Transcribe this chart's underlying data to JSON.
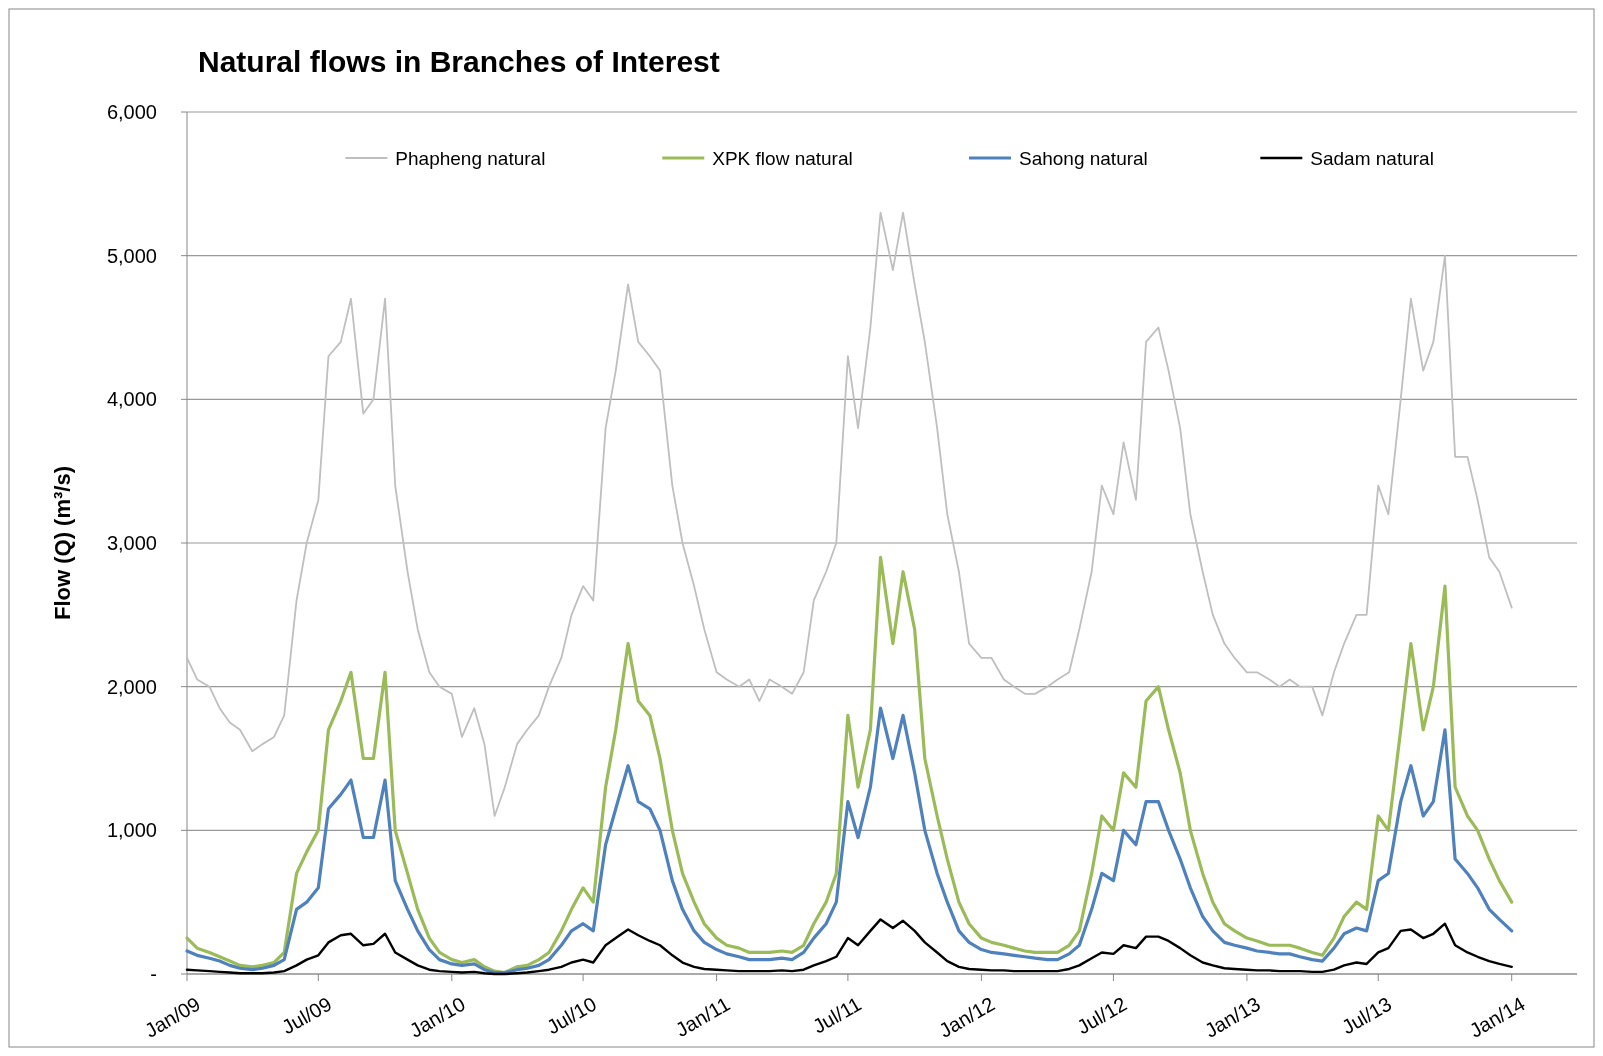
{
  "chart_data": {
    "type": "line",
    "title": "Natural flows in Branches of Interest",
    "ylabel": "Flow (Q) (m³/s)",
    "x": [
      "2009-01-01",
      "2009-01-15",
      "2009-02-01",
      "2009-02-15",
      "2009-03-01",
      "2009-03-15",
      "2009-04-01",
      "2009-04-15",
      "2009-05-01",
      "2009-05-15",
      "2009-06-01",
      "2009-06-15",
      "2009-07-01",
      "2009-07-15",
      "2009-08-01",
      "2009-08-15",
      "2009-09-01",
      "2009-09-15",
      "2009-10-01",
      "2009-10-15",
      "2009-11-01",
      "2009-11-15",
      "2009-12-01",
      "2009-12-15",
      "2010-01-01",
      "2010-01-15",
      "2010-02-01",
      "2010-02-15",
      "2010-03-01",
      "2010-03-15",
      "2010-04-01",
      "2010-04-15",
      "2010-05-01",
      "2010-05-15",
      "2010-06-01",
      "2010-06-15",
      "2010-07-01",
      "2010-07-15",
      "2010-08-01",
      "2010-08-15",
      "2010-09-01",
      "2010-09-15",
      "2010-10-01",
      "2010-10-15",
      "2010-11-01",
      "2010-11-15",
      "2010-12-01",
      "2010-12-15",
      "2011-01-01",
      "2011-01-15",
      "2011-02-01",
      "2011-02-15",
      "2011-03-01",
      "2011-03-15",
      "2011-04-01",
      "2011-04-15",
      "2011-05-01",
      "2011-05-15",
      "2011-06-01",
      "2011-06-15",
      "2011-07-01",
      "2011-07-15",
      "2011-08-01",
      "2011-08-15",
      "2011-09-01",
      "2011-09-15",
      "2011-10-01",
      "2011-10-15",
      "2011-11-01",
      "2011-11-15",
      "2011-12-01",
      "2011-12-15",
      "2012-01-01",
      "2012-01-15",
      "2012-02-01",
      "2012-02-15",
      "2012-03-01",
      "2012-03-15",
      "2012-04-01",
      "2012-04-15",
      "2012-05-01",
      "2012-05-15",
      "2012-06-01",
      "2012-06-15",
      "2012-07-01",
      "2012-07-15",
      "2012-08-01",
      "2012-08-15",
      "2012-09-01",
      "2012-09-15",
      "2012-10-01",
      "2012-10-15",
      "2012-11-01",
      "2012-11-15",
      "2012-12-01",
      "2012-12-15",
      "2013-01-01",
      "2013-01-15",
      "2013-02-01",
      "2013-02-15",
      "2013-03-01",
      "2013-03-15",
      "2013-04-01",
      "2013-04-15",
      "2013-05-01",
      "2013-05-15",
      "2013-06-01",
      "2013-06-15",
      "2013-07-01",
      "2013-07-15",
      "2013-08-01",
      "2013-08-15",
      "2013-09-01",
      "2013-09-15",
      "2013-10-01",
      "2013-10-15",
      "2013-11-01",
      "2013-11-15",
      "2013-12-01",
      "2013-12-15",
      "2014-01-01"
    ],
    "series": [
      {
        "name": "Phapheng natural",
        "color": "#bfbfbf",
        "values": [
          2200,
          2050,
          2000,
          1850,
          1750,
          1700,
          1550,
          1600,
          1650,
          1800,
          2600,
          3000,
          3300,
          4300,
          4400,
          4700,
          3900,
          4000,
          4700,
          3400,
          2800,
          2400,
          2100,
          2000,
          1950,
          1650,
          1850,
          1600,
          1100,
          1300,
          1600,
          1700,
          1800,
          2000,
          2200,
          2500,
          2700,
          2600,
          3800,
          4200,
          4800,
          4400,
          4300,
          4200,
          3400,
          3000,
          2700,
          2400,
          2100,
          2050,
          2000,
          2050,
          1900,
          2050,
          2000,
          1950,
          2100,
          2600,
          2800,
          3000,
          4300,
          3800,
          4500,
          5300,
          4900,
          5300,
          4800,
          4400,
          3800,
          3200,
          2800,
          2300,
          2200,
          2200,
          2050,
          2000,
          1950,
          1950,
          2000,
          2050,
          2100,
          2400,
          2800,
          3400,
          3200,
          3700,
          3300,
          4400,
          4500,
          4200,
          3800,
          3200,
          2800,
          2500,
          2300,
          2200,
          2100,
          2100,
          2050,
          2000,
          2050,
          2000,
          2000,
          1800,
          2100,
          2300,
          2500,
          2500,
          3400,
          3200,
          4000,
          4700,
          4200,
          4400,
          5000,
          3600,
          3600,
          3300,
          2900,
          2800,
          2550
        ]
      },
      {
        "name": "XPK flow natural",
        "color": "#9bbb59",
        "values": [
          250,
          180,
          150,
          120,
          90,
          60,
          50,
          60,
          80,
          150,
          700,
          850,
          1000,
          1700,
          1900,
          2100,
          1500,
          1500,
          2100,
          1000,
          700,
          450,
          250,
          150,
          100,
          80,
          100,
          50,
          20,
          10,
          50,
          60,
          100,
          150,
          300,
          450,
          600,
          500,
          1300,
          1700,
          2300,
          1900,
          1800,
          1500,
          1000,
          700,
          500,
          350,
          250,
          200,
          180,
          150,
          150,
          150,
          160,
          150,
          200,
          350,
          500,
          700,
          1800,
          1300,
          1700,
          2900,
          2300,
          2800,
          2400,
          1500,
          1100,
          800,
          500,
          350,
          250,
          220,
          200,
          180,
          160,
          150,
          150,
          150,
          200,
          300,
          700,
          1100,
          1000,
          1400,
          1300,
          1900,
          2000,
          1700,
          1400,
          1000,
          700,
          500,
          350,
          300,
          250,
          230,
          200,
          200,
          200,
          180,
          150,
          130,
          250,
          400,
          500,
          450,
          1100,
          1000,
          1700,
          2300,
          1700,
          2000,
          2700,
          1300,
          1100,
          1000,
          800,
          650,
          500
        ]
      },
      {
        "name": "Sahong natural",
        "color": "#4f81bd",
        "values": [
          160,
          130,
          110,
          90,
          60,
          40,
          30,
          40,
          60,
          100,
          450,
          500,
          600,
          1150,
          1250,
          1350,
          950,
          950,
          1350,
          650,
          450,
          300,
          170,
          100,
          70,
          60,
          70,
          30,
          10,
          10,
          30,
          40,
          60,
          100,
          200,
          300,
          350,
          300,
          900,
          1150,
          1450,
          1200,
          1150,
          1000,
          650,
          450,
          300,
          220,
          170,
          140,
          120,
          100,
          100,
          100,
          110,
          100,
          150,
          250,
          350,
          500,
          1200,
          950,
          1300,
          1850,
          1500,
          1800,
          1400,
          1000,
          700,
          500,
          300,
          220,
          170,
          150,
          140,
          130,
          120,
          110,
          100,
          100,
          140,
          200,
          450,
          700,
          650,
          1000,
          900,
          1200,
          1200,
          1000,
          800,
          600,
          400,
          300,
          220,
          200,
          180,
          160,
          150,
          140,
          140,
          120,
          100,
          90,
          180,
          280,
          320,
          300,
          650,
          700,
          1200,
          1450,
          1100,
          1200,
          1700,
          800,
          700,
          600,
          450,
          380,
          300
        ]
      },
      {
        "name": "Sadam natural",
        "color": "#000000",
        "values": [
          30,
          25,
          20,
          15,
          10,
          5,
          5,
          5,
          10,
          20,
          60,
          100,
          130,
          220,
          270,
          280,
          200,
          210,
          280,
          150,
          100,
          60,
          30,
          20,
          15,
          10,
          15,
          5,
          0,
          0,
          5,
          10,
          20,
          30,
          50,
          80,
          100,
          80,
          200,
          250,
          310,
          270,
          230,
          200,
          130,
          80,
          50,
          35,
          30,
          25,
          20,
          20,
          20,
          20,
          25,
          20,
          30,
          60,
          90,
          120,
          250,
          200,
          300,
          380,
          320,
          370,
          300,
          220,
          150,
          90,
          50,
          35,
          30,
          25,
          25,
          20,
          20,
          20,
          20,
          20,
          35,
          60,
          110,
          150,
          140,
          200,
          180,
          260,
          260,
          230,
          180,
          130,
          80,
          60,
          40,
          35,
          30,
          25,
          25,
          20,
          20,
          20,
          15,
          15,
          30,
          60,
          80,
          70,
          150,
          180,
          300,
          310,
          250,
          280,
          350,
          200,
          150,
          120,
          90,
          70,
          50
        ]
      }
    ],
    "xlim": [
      "2009-01-01",
      "2014-04-01"
    ],
    "xticks": [
      {
        "value": "2009-01",
        "label": "Jan/09"
      },
      {
        "value": "2009-07",
        "label": "Jul/09"
      },
      {
        "value": "2010-01",
        "label": "Jan/10"
      },
      {
        "value": "2010-07",
        "label": "Jul/10"
      },
      {
        "value": "2011-01",
        "label": "Jan/11"
      },
      {
        "value": "2011-07",
        "label": "Jul/11"
      },
      {
        "value": "2012-01",
        "label": "Jan/12"
      },
      {
        "value": "2012-07",
        "label": "Jul/12"
      },
      {
        "value": "2013-01",
        "label": "Jan/13"
      },
      {
        "value": "2013-07",
        "label": "Jul/13"
      },
      {
        "value": "2014-01",
        "label": "Jan/14"
      }
    ],
    "ylim": [
      0,
      6000
    ],
    "yticks": [
      {
        "value": 0,
        "label": "-"
      },
      {
        "value": 1000,
        "label": "1,000"
      },
      {
        "value": 2000,
        "label": "2,000"
      },
      {
        "value": 3000,
        "label": "3,000"
      },
      {
        "value": 4000,
        "label": "4,000"
      },
      {
        "value": 5000,
        "label": "5,000"
      },
      {
        "value": 6000,
        "label": "6,000"
      }
    ],
    "grid": "y",
    "legend": "top",
    "marker": "none",
    "line_style": "solid"
  }
}
